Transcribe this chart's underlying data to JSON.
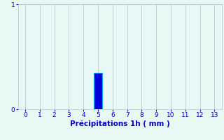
{
  "title": "",
  "xlabel": "Précipitations 1h ( mm )",
  "xlim": [
    -0.5,
    13.5
  ],
  "ylim": [
    0,
    1
  ],
  "xticks": [
    0,
    1,
    2,
    3,
    4,
    5,
    6,
    7,
    8,
    9,
    10,
    11,
    12,
    13
  ],
  "yticks": [
    0,
    1
  ],
  "bar_x": [
    5
  ],
  "bar_height": [
    0.35
  ],
  "bar_width": 0.6,
  "bar_color": "#0000dd",
  "bar_edge_color": "#00aaff",
  "background_color": "#e8f8f4",
  "grid_color": "#a8c8c8",
  "tick_color": "#0000cc",
  "label_color": "#0000cc",
  "tick_fontsize": 6.5,
  "label_fontsize": 7.5,
  "figsize": [
    3.2,
    2.0
  ],
  "dpi": 100
}
